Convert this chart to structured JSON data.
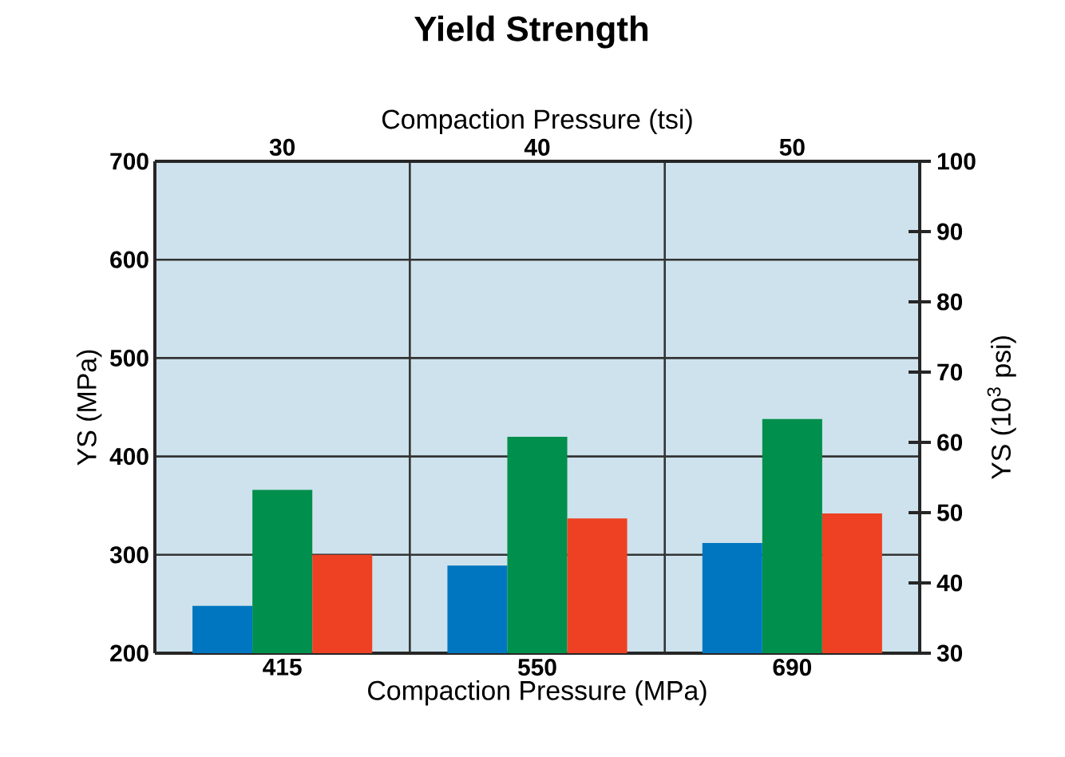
{
  "chart_data": {
    "type": "bar",
    "title": "Yield Strength",
    "xlabel": "Compaction Pressure (MPa)",
    "x2label": "Compaction Pressure (tsi)",
    "ylabel": "YS (MPa)",
    "y2label": "YS (10$^{3}$ psi)",
    "categories": [
      "415",
      "550",
      "690"
    ],
    "x2lim": [
      25,
      55
    ],
    "x2ticks": [
      30,
      40,
      50
    ],
    "ylim": [
      200,
      700
    ],
    "yticks": [
      200,
      300,
      400,
      500,
      600,
      700
    ],
    "y2lim": [
      30,
      100
    ],
    "y2ticks": [
      30,
      40,
      50,
      60,
      70,
      80,
      90,
      100
    ],
    "grid": true,
    "series": [
      {
        "color": "#0076c0",
        "values": [
          248,
          289,
          312
        ]
      },
      {
        "color": "#008f4c",
        "values": [
          366,
          420,
          438
        ]
      },
      {
        "color": "#ee4123",
        "values": [
          300,
          337,
          342
        ]
      }
    ]
  }
}
